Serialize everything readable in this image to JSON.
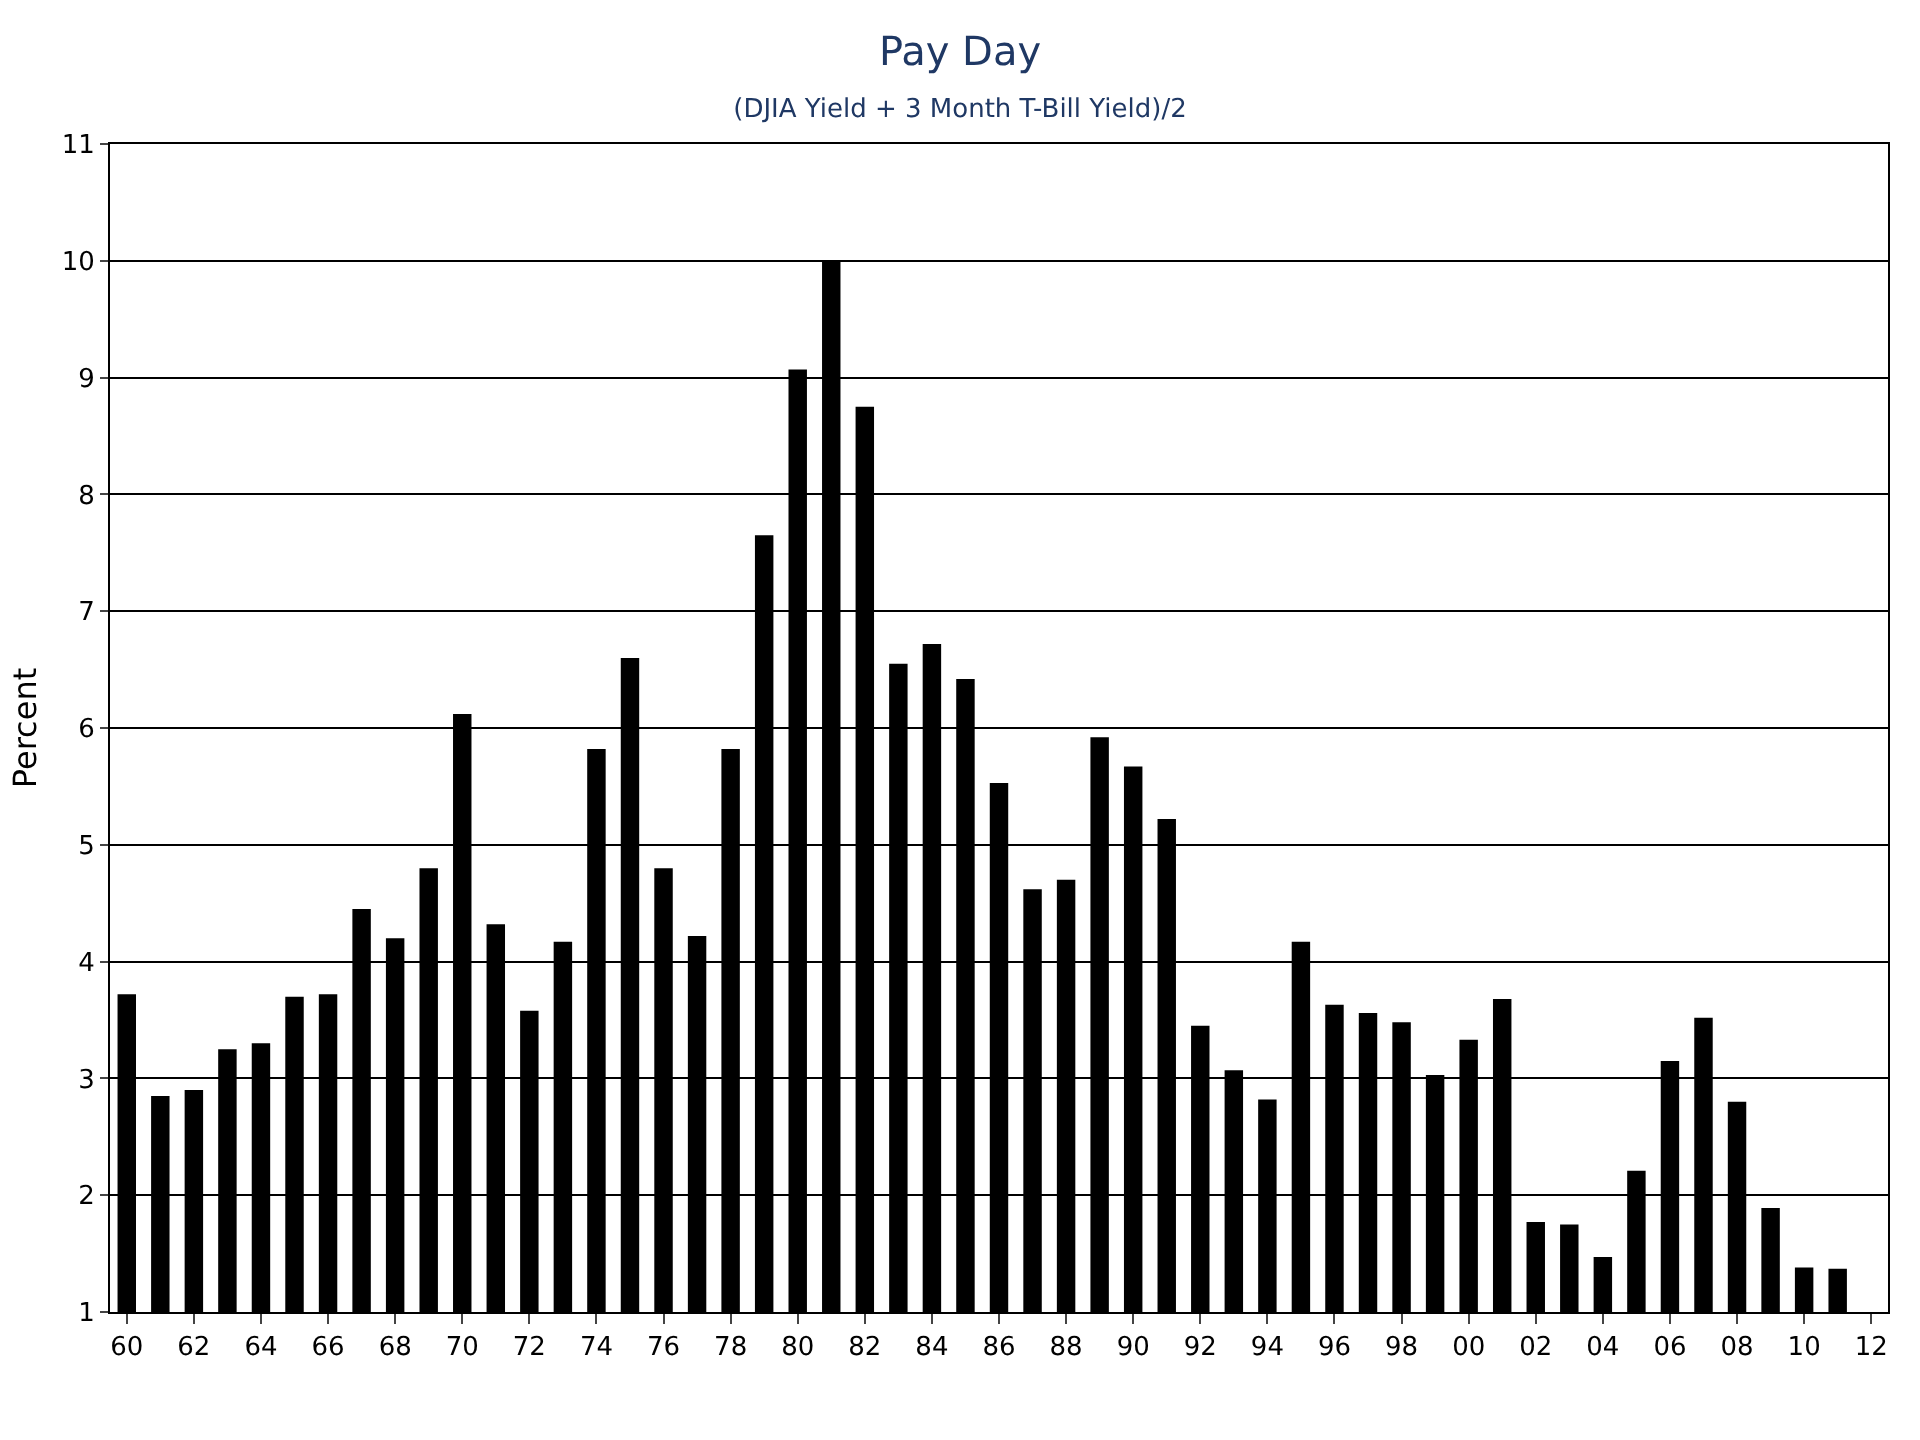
{
  "chart_data": {
    "type": "bar",
    "title": "Pay Day",
    "subtitle": "(DJIA Yield + 3 Month T-Bill Yield)/2",
    "ylabel": "Percent",
    "categories": [
      "60",
      null,
      "62",
      null,
      "64",
      null,
      "66",
      null,
      "68",
      null,
      "70",
      null,
      "72",
      null,
      "74",
      null,
      "76",
      null,
      "78",
      null,
      "80",
      null,
      "82",
      null,
      "84",
      null,
      "86",
      null,
      "88",
      null,
      "90",
      null,
      "92",
      null,
      "94",
      null,
      "96",
      null,
      "98",
      null,
      "00",
      null,
      "02",
      null,
      "04",
      null,
      "06",
      null,
      "08",
      null,
      "10",
      null,
      "12"
    ],
    "values": [
      3.72,
      2.85,
      2.9,
      3.25,
      3.3,
      3.7,
      3.72,
      4.45,
      4.2,
      4.8,
      6.12,
      4.32,
      3.58,
      4.17,
      5.82,
      6.6,
      4.8,
      4.22,
      5.82,
      7.65,
      9.07,
      10.0,
      8.75,
      6.55,
      6.72,
      6.42,
      5.53,
      4.62,
      4.7,
      5.92,
      5.67,
      5.22,
      3.45,
      3.07,
      2.82,
      4.17,
      3.63,
      3.56,
      3.48,
      3.03,
      3.33,
      3.68,
      1.77,
      1.75,
      1.47,
      2.21,
      3.15,
      3.52,
      2.8,
      1.89,
      1.38,
      1.37,
      null
    ],
    "color": "#000000",
    "ylim": [
      1,
      11
    ],
    "yticks": [
      1,
      2,
      3,
      4,
      5,
      6,
      7,
      8,
      9,
      10,
      11
    ],
    "grid": "y"
  }
}
